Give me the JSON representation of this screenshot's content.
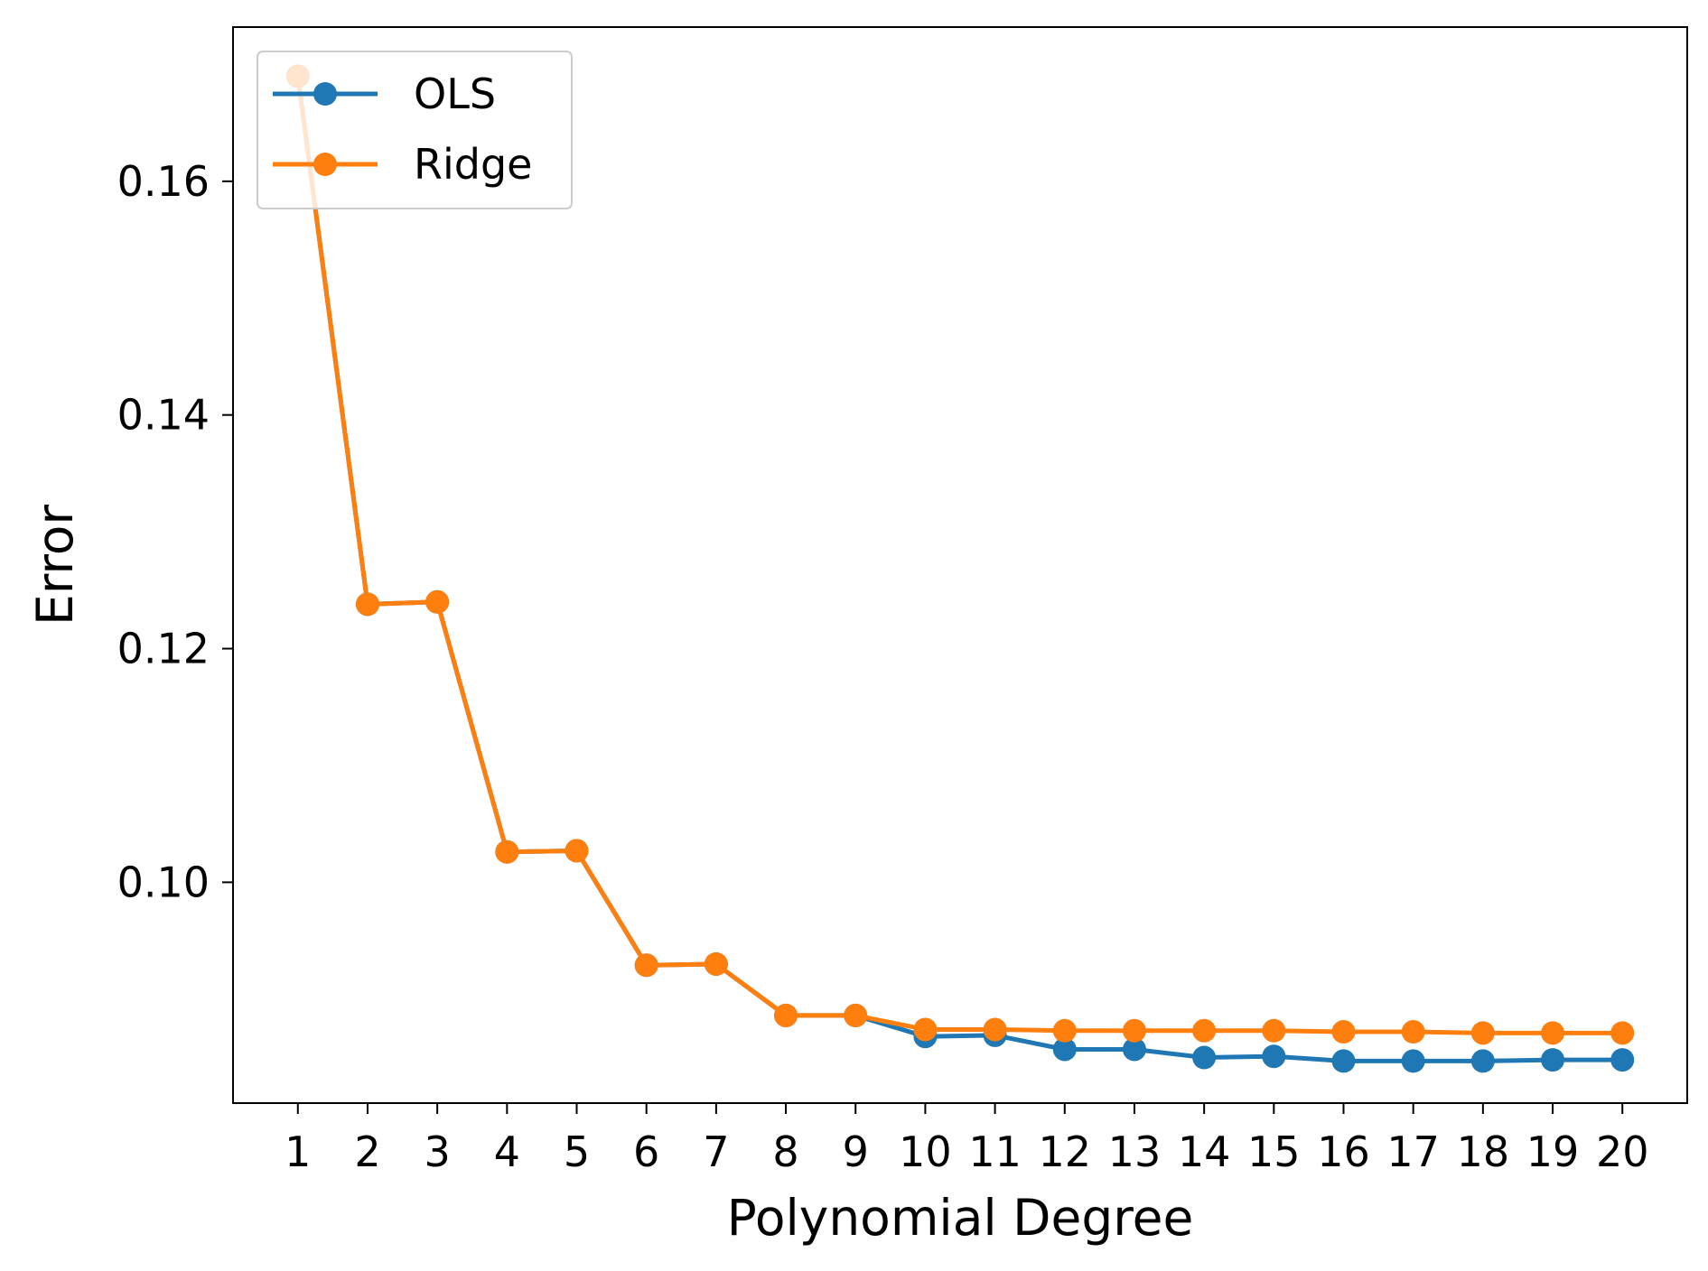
{
  "chart_data": {
    "type": "line",
    "x": [
      1,
      2,
      3,
      4,
      5,
      6,
      7,
      8,
      9,
      10,
      11,
      12,
      13,
      14,
      15,
      16,
      17,
      18,
      19,
      20
    ],
    "x_tick_labels": [
      "1",
      "2",
      "3",
      "4",
      "5",
      "6",
      "7",
      "8",
      "9",
      "10",
      "11",
      "12",
      "13",
      "14",
      "15",
      "16",
      "17",
      "18",
      "19",
      "20"
    ],
    "xlabel": "Polynomial Degree",
    "ylabel": "Error",
    "xlim": [
      0.07,
      20.93
    ],
    "ylim": [
      0.0811,
      0.1732
    ],
    "y_ticks": [
      0.1,
      0.12,
      0.14,
      0.16
    ],
    "y_tick_labels": [
      "0.10",
      "0.12",
      "0.14",
      "0.16"
    ],
    "grid": false,
    "legend_position": "upper-left",
    "series": [
      {
        "name": "OLS",
        "color": "#1f77b4",
        "marker": "circle",
        "values": [
          0.169,
          0.1238,
          0.124,
          0.1026,
          0.1027,
          0.0929,
          0.093,
          0.0886,
          0.0886,
          0.0868,
          0.0869,
          0.0857,
          0.0857,
          0.085,
          0.0851,
          0.0847,
          0.0847,
          0.0847,
          0.0848,
          0.0848
        ]
      },
      {
        "name": "Ridge",
        "color": "#ff7f0e",
        "marker": "circle",
        "values": [
          0.169,
          0.1238,
          0.124,
          0.1026,
          0.1027,
          0.0929,
          0.093,
          0.0886,
          0.0886,
          0.0874,
          0.0874,
          0.0873,
          0.0873,
          0.0873,
          0.0873,
          0.0872,
          0.0872,
          0.0871,
          0.0871,
          0.0871
        ]
      }
    ]
  }
}
